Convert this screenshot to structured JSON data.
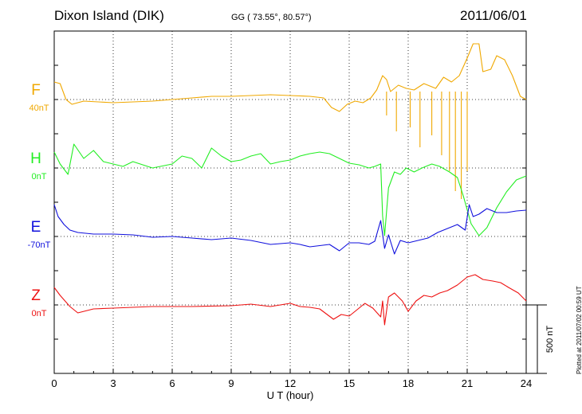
{
  "header": {
    "station": "Dixon Island (DIK)",
    "coords": "GG ( 73.55°,  80.57°)",
    "date": "2011/06/01"
  },
  "footer": {
    "plotted": "Plotted at 2011/07/02 00:59 UT"
  },
  "chart_data": {
    "type": "line",
    "xlabel": "U T (hour)",
    "x_ticks": [
      "0",
      "3",
      "6",
      "9",
      "12",
      "15",
      "18",
      "21",
      "24"
    ],
    "xlim": [
      0,
      24
    ],
    "scale_bar": {
      "label": "500 nT",
      "value": 500
    },
    "series": [
      {
        "name": "F",
        "baseline_label": "40nT",
        "color": "#f0a800",
        "points": [
          [
            0,
            -22
          ],
          [
            0.3,
            -20
          ],
          [
            0.6,
            0
          ],
          [
            0.9,
            6
          ],
          [
            1.5,
            2
          ],
          [
            3,
            4
          ],
          [
            4,
            3
          ],
          [
            5,
            2
          ],
          [
            6,
            0
          ],
          [
            7,
            -2
          ],
          [
            8,
            -4
          ],
          [
            9,
            -4
          ],
          [
            10,
            -5
          ],
          [
            11,
            -6
          ],
          [
            12,
            -5
          ],
          [
            13,
            -4
          ],
          [
            13.7,
            -2
          ],
          [
            14.1,
            10
          ],
          [
            14.5,
            15
          ],
          [
            14.9,
            6
          ],
          [
            15.3,
            2
          ],
          [
            15.7,
            4
          ],
          [
            16.1,
            -2
          ],
          [
            16.4,
            -12
          ],
          [
            16.7,
            -30
          ],
          [
            16.9,
            -25
          ],
          [
            17.1,
            -10
          ],
          [
            17.5,
            -18
          ],
          [
            17.9,
            -14
          ],
          [
            18.3,
            -12
          ],
          [
            18.8,
            -20
          ],
          [
            19.4,
            -14
          ],
          [
            19.8,
            -28
          ],
          [
            20.2,
            -22
          ],
          [
            20.6,
            -30
          ],
          [
            21.0,
            -52
          ],
          [
            21.3,
            -70
          ],
          [
            21.6,
            -70
          ],
          [
            21.8,
            -35
          ],
          [
            22.2,
            -38
          ],
          [
            22.5,
            -55
          ],
          [
            22.9,
            -50
          ],
          [
            23.3,
            -30
          ],
          [
            23.7,
            -4
          ],
          [
            24,
            0
          ]
        ],
        "spikes": [
          [
            16.9,
            20
          ],
          [
            17.4,
            40
          ],
          [
            18.1,
            35
          ],
          [
            18.6,
            60
          ],
          [
            19.2,
            45
          ],
          [
            19.7,
            70
          ],
          [
            20.1,
            90
          ],
          [
            20.4,
            115
          ],
          [
            20.7,
            125
          ],
          [
            21.0,
            90
          ]
        ]
      },
      {
        "name": "H",
        "baseline_label": "0nT",
        "color": "#22ee22",
        "points": [
          [
            0,
            -20
          ],
          [
            0.3,
            -5
          ],
          [
            0.7,
            8
          ],
          [
            1.0,
            -30
          ],
          [
            1.5,
            -12
          ],
          [
            2,
            -22
          ],
          [
            2.5,
            -8
          ],
          [
            3,
            -5
          ],
          [
            3.5,
            -2
          ],
          [
            4,
            -8
          ],
          [
            5,
            0
          ],
          [
            6,
            -5
          ],
          [
            6.5,
            -15
          ],
          [
            7,
            -12
          ],
          [
            7.5,
            0
          ],
          [
            8,
            -25
          ],
          [
            8.5,
            -15
          ],
          [
            9,
            -8
          ],
          [
            9.5,
            -10
          ],
          [
            10,
            -15
          ],
          [
            10.5,
            -18
          ],
          [
            11,
            -5
          ],
          [
            11.5,
            -8
          ],
          [
            12,
            -10
          ],
          [
            12.5,
            -15
          ],
          [
            13,
            -18
          ],
          [
            13.5,
            -20
          ],
          [
            14,
            -18
          ],
          [
            14.5,
            -12
          ],
          [
            15,
            -6
          ],
          [
            15.5,
            -4
          ],
          [
            16,
            0
          ],
          [
            16.3,
            -2
          ],
          [
            16.6,
            -5
          ],
          [
            16.7,
            60
          ],
          [
            16.8,
            85
          ],
          [
            17.0,
            25
          ],
          [
            17.3,
            5
          ],
          [
            17.6,
            8
          ],
          [
            17.9,
            0
          ],
          [
            18.3,
            5
          ],
          [
            18.7,
            0
          ],
          [
            19.2,
            -5
          ],
          [
            19.6,
            -2
          ],
          [
            20.1,
            5
          ],
          [
            20.5,
            12
          ],
          [
            20.8,
            35
          ],
          [
            21.2,
            70
          ],
          [
            21.6,
            85
          ],
          [
            22,
            75
          ],
          [
            22.5,
            50
          ],
          [
            23,
            30
          ],
          [
            23.5,
            15
          ],
          [
            24,
            10
          ]
        ]
      },
      {
        "name": "E",
        "baseline_label": "-70nT",
        "color": "#1010dd",
        "points": [
          [
            0,
            -40
          ],
          [
            0.2,
            -25
          ],
          [
            0.5,
            -15
          ],
          [
            0.8,
            -8
          ],
          [
            1.2,
            -5
          ],
          [
            2,
            -3
          ],
          [
            3,
            -3
          ],
          [
            4,
            -2
          ],
          [
            5,
            1
          ],
          [
            6,
            0
          ],
          [
            7,
            2
          ],
          [
            8,
            4
          ],
          [
            9,
            2
          ],
          [
            10,
            5
          ],
          [
            11,
            10
          ],
          [
            12,
            8
          ],
          [
            12.5,
            10
          ],
          [
            13,
            13
          ],
          [
            14,
            10
          ],
          [
            14.5,
            18
          ],
          [
            15,
            8
          ],
          [
            15.5,
            8
          ],
          [
            16,
            10
          ],
          [
            16.3,
            6
          ],
          [
            16.6,
            -20
          ],
          [
            16.8,
            15
          ],
          [
            17.0,
            -2
          ],
          [
            17.3,
            22
          ],
          [
            17.6,
            5
          ],
          [
            18,
            8
          ],
          [
            18.5,
            5
          ],
          [
            19,
            2
          ],
          [
            19.5,
            -5
          ],
          [
            20,
            -10
          ],
          [
            20.5,
            -15
          ],
          [
            20.9,
            -8
          ],
          [
            21.1,
            -40
          ],
          [
            21.3,
            -25
          ],
          [
            21.6,
            -28
          ],
          [
            22,
            -35
          ],
          [
            22.5,
            -30
          ],
          [
            23,
            -30
          ],
          [
            23.5,
            -32
          ],
          [
            24,
            -33
          ]
        ]
      },
      {
        "name": "Z",
        "baseline_label": "0nT",
        "color": "#ee1111",
        "points": [
          [
            0,
            -22
          ],
          [
            0.3,
            -12
          ],
          [
            0.8,
            2
          ],
          [
            1.2,
            10
          ],
          [
            2,
            5
          ],
          [
            3,
            4
          ],
          [
            5,
            2
          ],
          [
            7,
            2
          ],
          [
            9,
            1
          ],
          [
            10,
            -1
          ],
          [
            11,
            2
          ],
          [
            12,
            -2
          ],
          [
            12.5,
            2
          ],
          [
            13,
            3
          ],
          [
            13.5,
            5
          ],
          [
            14.2,
            18
          ],
          [
            14.6,
            12
          ],
          [
            15,
            14
          ],
          [
            15.4,
            6
          ],
          [
            15.8,
            -2
          ],
          [
            16.2,
            4
          ],
          [
            16.6,
            15
          ],
          [
            16.7,
            -5
          ],
          [
            16.8,
            25
          ],
          [
            17,
            -10
          ],
          [
            17.3,
            -15
          ],
          [
            17.7,
            -5
          ],
          [
            18,
            8
          ],
          [
            18.4,
            -5
          ],
          [
            18.8,
            -12
          ],
          [
            19.2,
            -10
          ],
          [
            19.6,
            -15
          ],
          [
            20,
            -18
          ],
          [
            20.5,
            -25
          ],
          [
            21,
            -35
          ],
          [
            21.4,
            -38
          ],
          [
            21.8,
            -32
          ],
          [
            22.3,
            -30
          ],
          [
            22.7,
            -28
          ],
          [
            23.1,
            -22
          ],
          [
            23.6,
            -15
          ],
          [
            24,
            -5
          ]
        ]
      }
    ]
  }
}
